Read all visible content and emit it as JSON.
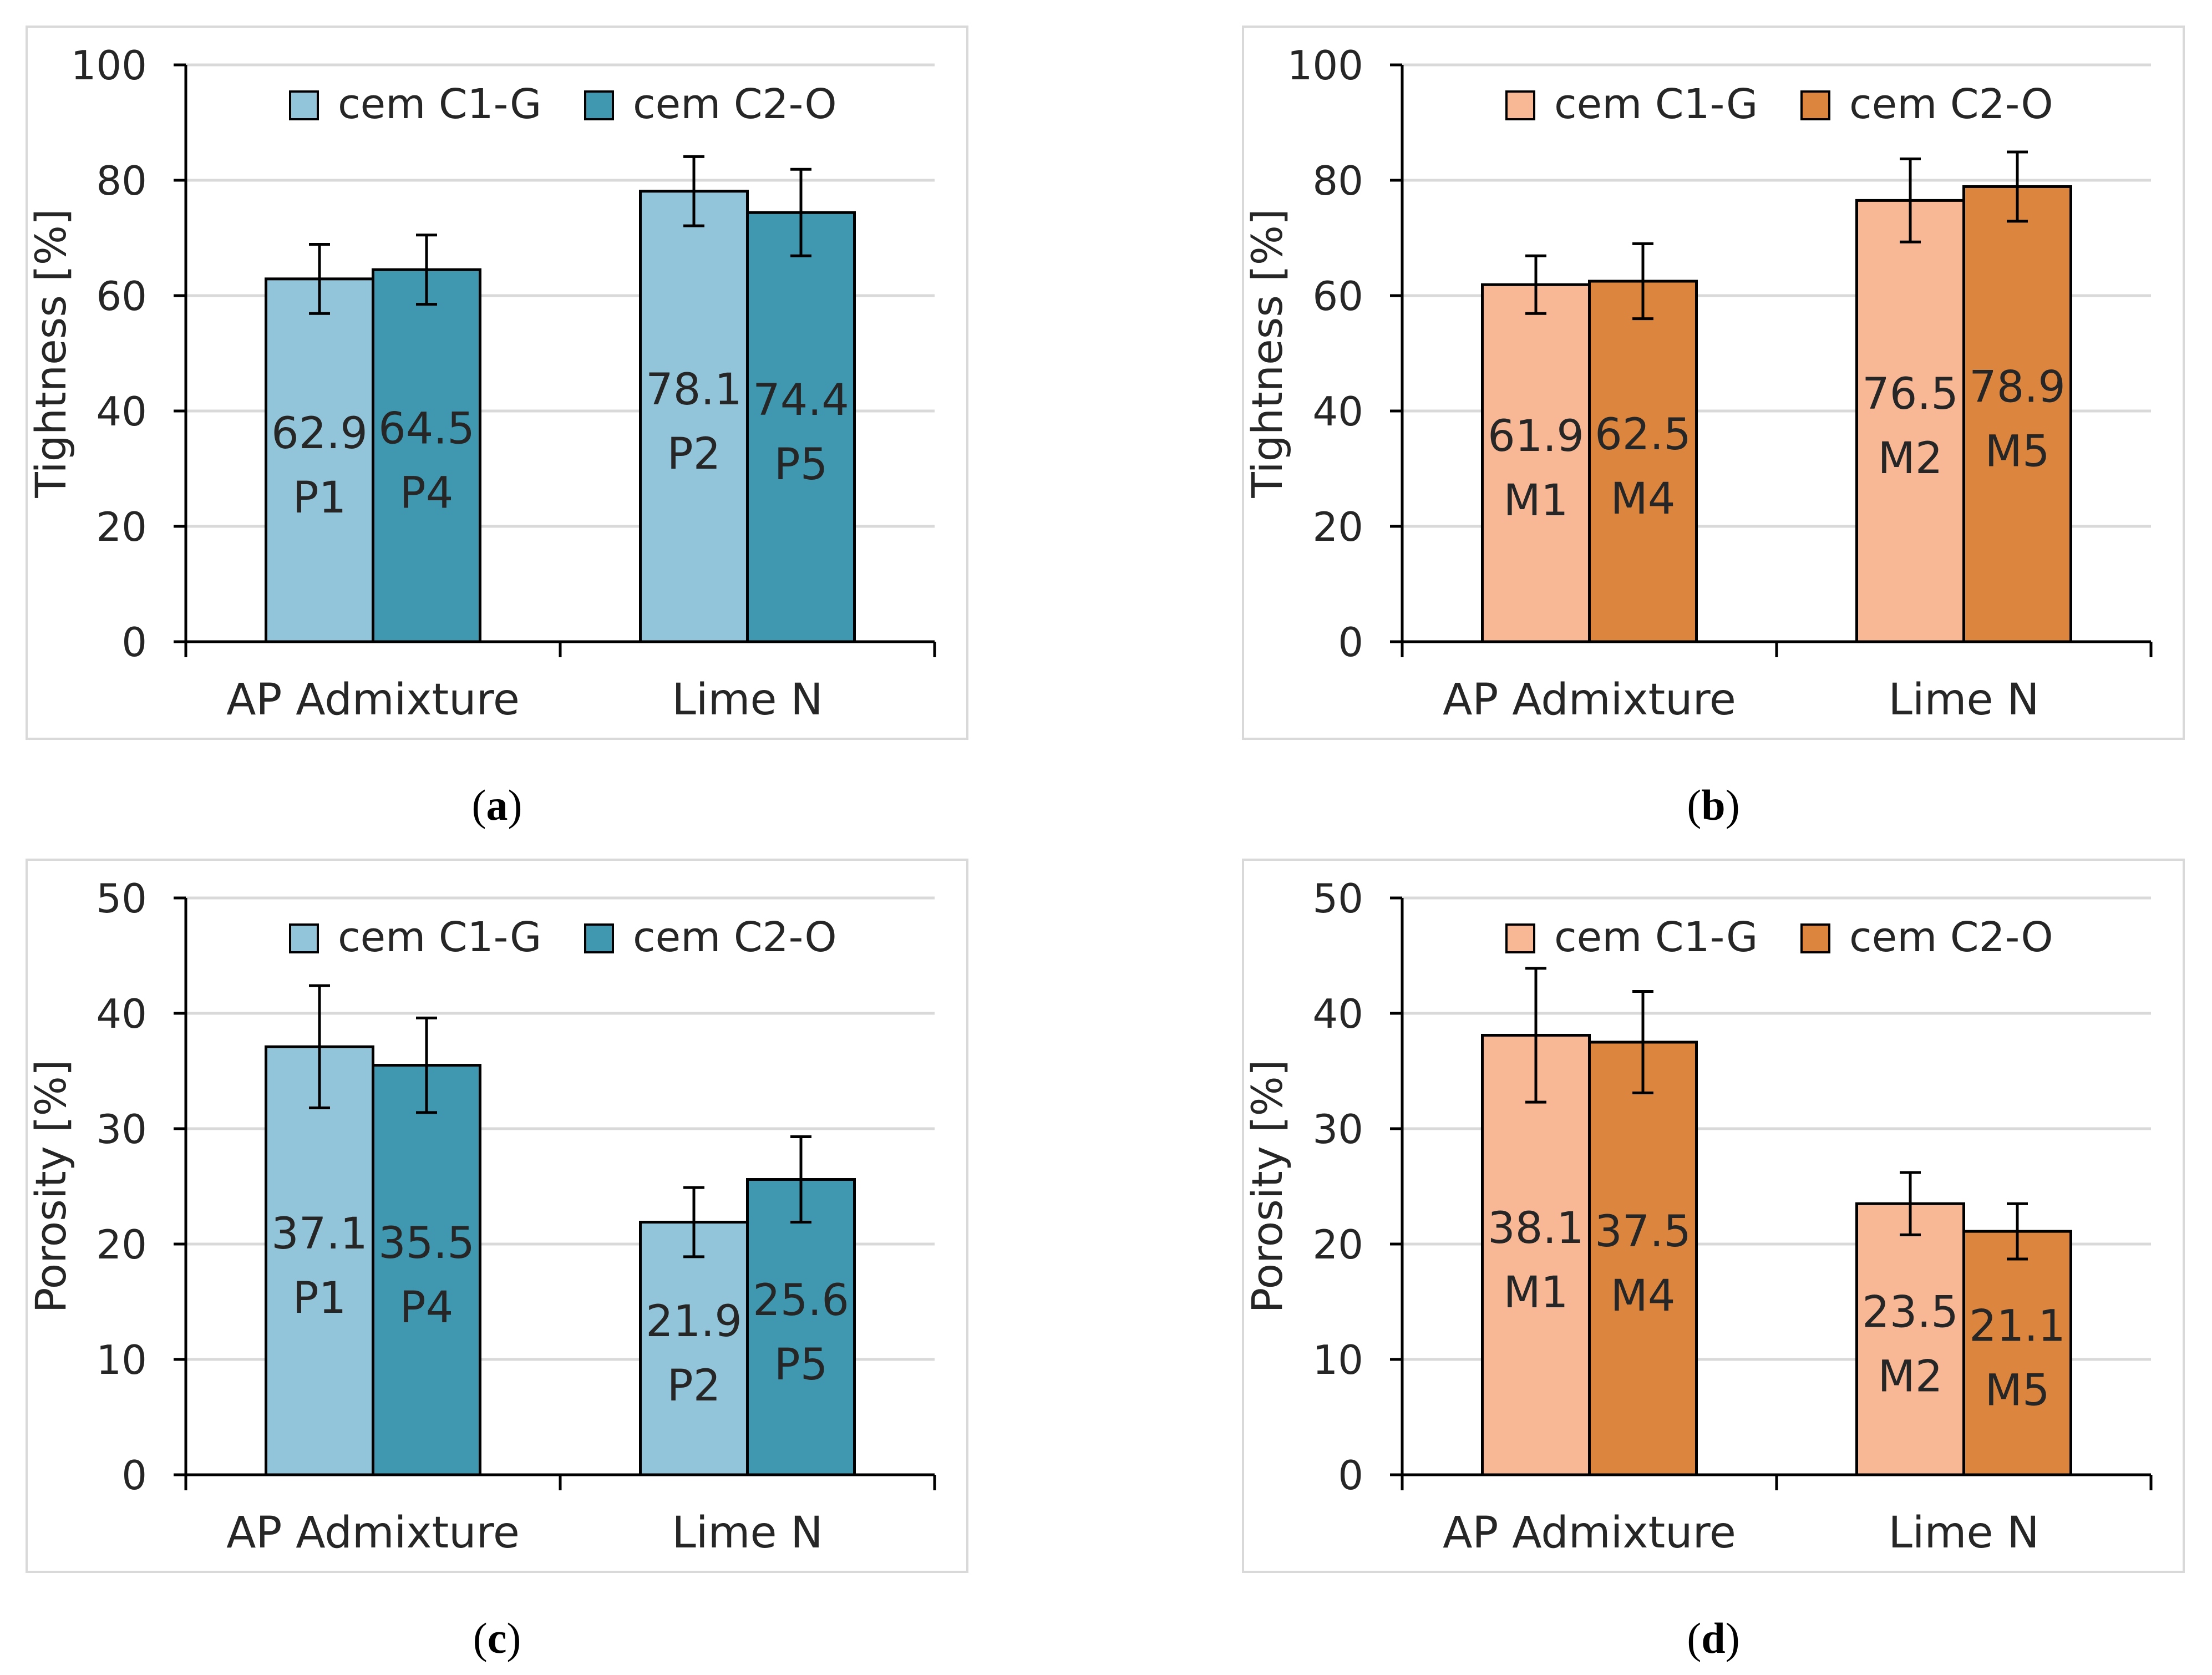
{
  "figure": {
    "panels": [
      {
        "caption_open": "(",
        "caption_letter": "a",
        "caption_close": ")"
      },
      {
        "caption_open": "(",
        "caption_letter": "b",
        "caption_close": ")"
      },
      {
        "caption_open": "(",
        "caption_letter": "c",
        "caption_close": ")"
      },
      {
        "caption_open": "(",
        "caption_letter": "d",
        "caption_close": ")"
      }
    ]
  },
  "colors": {
    "c1_blue": "#92c5d9",
    "c2_blue": "#3f97b0",
    "c1_orange": "#f8b896",
    "c2_orange": "#dc853f",
    "grid": "#d9d9d9",
    "axis": "#000000",
    "text": "#262626"
  },
  "chart_data": [
    {
      "type": "bar",
      "panel": "a",
      "title": "",
      "ylabel": "Tightness  [%]",
      "xlabel": "",
      "ylim": [
        0,
        100
      ],
      "yticks": [
        0,
        20,
        40,
        60,
        80,
        100
      ],
      "grid": true,
      "legend_position": "top",
      "categories": [
        "AP Admixture",
        "Lime N"
      ],
      "series": [
        {
          "name": "cem C1-G",
          "color_key": "c1_blue",
          "values": [
            62.9,
            78.1
          ],
          "errors": [
            6,
            6
          ],
          "labels": [
            [
              "62.9",
              "P1"
            ],
            [
              "78.1",
              "P2"
            ]
          ]
        },
        {
          "name": "cem C2-O",
          "color_key": "c2_blue",
          "values": [
            64.5,
            74.4
          ],
          "errors": [
            6,
            7.5
          ],
          "labels": [
            [
              "64.5",
              "P4"
            ],
            [
              "74.4",
              "P5"
            ]
          ]
        }
      ]
    },
    {
      "type": "bar",
      "panel": "b",
      "title": "",
      "ylabel": "Tightness  [%]",
      "xlabel": "",
      "ylim": [
        0,
        100
      ],
      "yticks": [
        0,
        20,
        40,
        60,
        80,
        100
      ],
      "grid": true,
      "legend_position": "top",
      "categories": [
        "AP Admixture",
        "Lime N"
      ],
      "series": [
        {
          "name": "cem C1-G",
          "color_key": "c1_orange",
          "values": [
            61.9,
            76.5
          ],
          "errors": [
            5,
            7.2
          ],
          "labels": [
            [
              "61.9",
              "M1"
            ],
            [
              "76.5",
              "M2"
            ]
          ]
        },
        {
          "name": "cem C2-O",
          "color_key": "c2_orange",
          "values": [
            62.5,
            78.9
          ],
          "errors": [
            6.5,
            6
          ],
          "labels": [
            [
              "62.5",
              "M4"
            ],
            [
              "78.9",
              "M5"
            ]
          ]
        }
      ]
    },
    {
      "type": "bar",
      "panel": "c",
      "title": "",
      "ylabel": "Porosity  [%]",
      "xlabel": "",
      "ylim": [
        0,
        50
      ],
      "yticks": [
        0,
        10,
        20,
        30,
        40,
        50
      ],
      "grid": true,
      "legend_position": "top",
      "categories": [
        "AP Admixture",
        "Lime N"
      ],
      "series": [
        {
          "name": "cem C1-G",
          "color_key": "c1_blue",
          "values": [
            37.1,
            21.9
          ],
          "errors": [
            5.3,
            3
          ],
          "labels": [
            [
              "37.1",
              "P1"
            ],
            [
              "21.9",
              "P2"
            ]
          ]
        },
        {
          "name": "cem C2-O",
          "color_key": "c2_blue",
          "values": [
            35.5,
            25.6
          ],
          "errors": [
            4.1,
            3.7
          ],
          "labels": [
            [
              "35.5",
              "P4"
            ],
            [
              "25.6",
              "P5"
            ]
          ]
        }
      ]
    },
    {
      "type": "bar",
      "panel": "d",
      "title": "",
      "ylabel": "Porosity  [%]",
      "xlabel": "",
      "ylim": [
        0,
        50
      ],
      "yticks": [
        0,
        10,
        20,
        30,
        40,
        50
      ],
      "grid": true,
      "legend_position": "top",
      "categories": [
        "AP Admixture",
        "Lime N"
      ],
      "series": [
        {
          "name": "cem C1-G",
          "color_key": "c1_orange",
          "values": [
            38.1,
            23.5
          ],
          "errors": [
            5.8,
            2.7
          ],
          "labels": [
            [
              "38.1",
              "M1"
            ],
            [
              "23.5",
              "M2"
            ]
          ]
        },
        {
          "name": "cem C2-O",
          "color_key": "c2_orange",
          "values": [
            37.5,
            21.1
          ],
          "errors": [
            4.4,
            2.4
          ],
          "labels": [
            [
              "37.5",
              "M4"
            ],
            [
              "21.1",
              "M5"
            ]
          ]
        }
      ]
    }
  ]
}
